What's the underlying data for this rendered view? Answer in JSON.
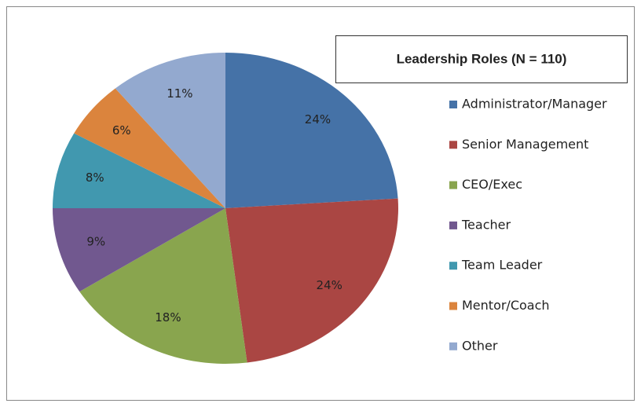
{
  "chart_data": {
    "type": "pie",
    "title": "Leadership Roles (N = 110)",
    "categories": [
      "Administrator/Manager",
      "Senior Management",
      "CEO/Exec",
      "Teacher",
      "Team Leader",
      "Mentor/Coach",
      "Other"
    ],
    "values": [
      24,
      24,
      18,
      9,
      8,
      6,
      11
    ],
    "value_labels": [
      "24%",
      "24%",
      "18%",
      "9%",
      "8%",
      "6%",
      "11%"
    ],
    "colors": [
      "#4572a7",
      "#aa4643",
      "#89a54e",
      "#71588f",
      "#4198af",
      "#db843d",
      "#93a9cf"
    ],
    "legend": "right"
  }
}
